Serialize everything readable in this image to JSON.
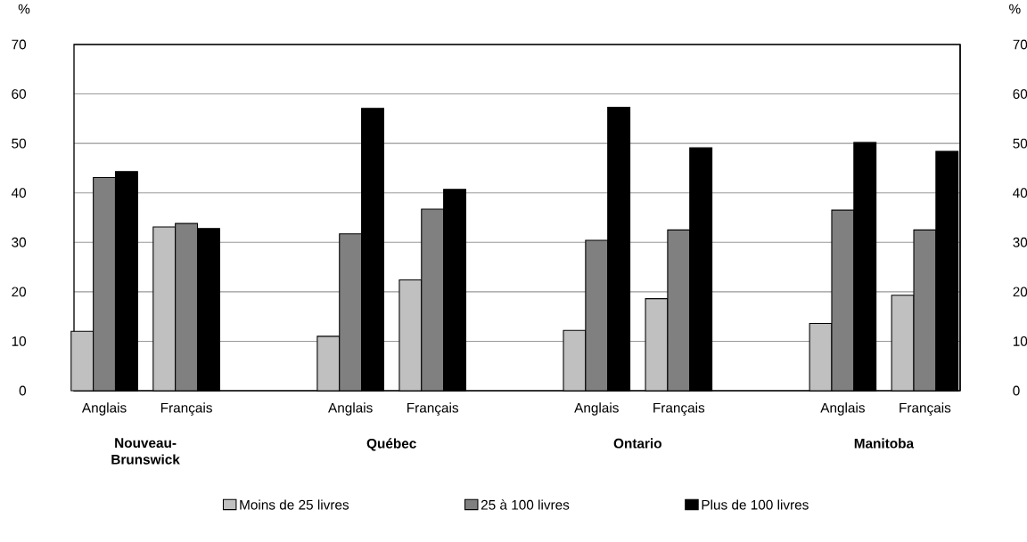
{
  "chart_data": {
    "type": "bar",
    "categories": [
      "Anglais",
      "Français",
      null,
      "Anglais",
      "Français",
      null,
      "Anglais",
      "Français",
      null,
      "Anglais",
      "Français"
    ],
    "series": [
      {
        "name": "Moins de 25 livres",
        "color": "#c0c0c0",
        "values": [
          12.0,
          33.1,
          null,
          11.0,
          22.4,
          null,
          12.2,
          18.6,
          null,
          13.6,
          19.3
        ]
      },
      {
        "name": "25 à 100 livres",
        "color": "#808080",
        "values": [
          43.1,
          33.8,
          null,
          31.7,
          36.7,
          null,
          30.4,
          32.5,
          null,
          36.5,
          32.5
        ]
      },
      {
        "name": "Plus de 100 livres",
        "color": "#000000",
        "values": [
          44.3,
          32.8,
          null,
          57.1,
          40.7,
          null,
          57.3,
          49.1,
          null,
          50.2,
          48.4
        ]
      }
    ],
    "ylabel": "%",
    "y2label": "%",
    "ylim": [
      0,
      70
    ],
    "yticks": [
      0,
      10,
      20,
      30,
      40,
      50,
      60,
      70
    ],
    "y2lim": [
      0,
      70
    ],
    "y2ticks": [
      0,
      10,
      20,
      30,
      40,
      50,
      60,
      70
    ],
    "annotations": [
      "Nouveau-Brunswick",
      "Québec",
      "Ontario",
      "Manitoba"
    ],
    "grid": "y",
    "legend": "bottom"
  }
}
